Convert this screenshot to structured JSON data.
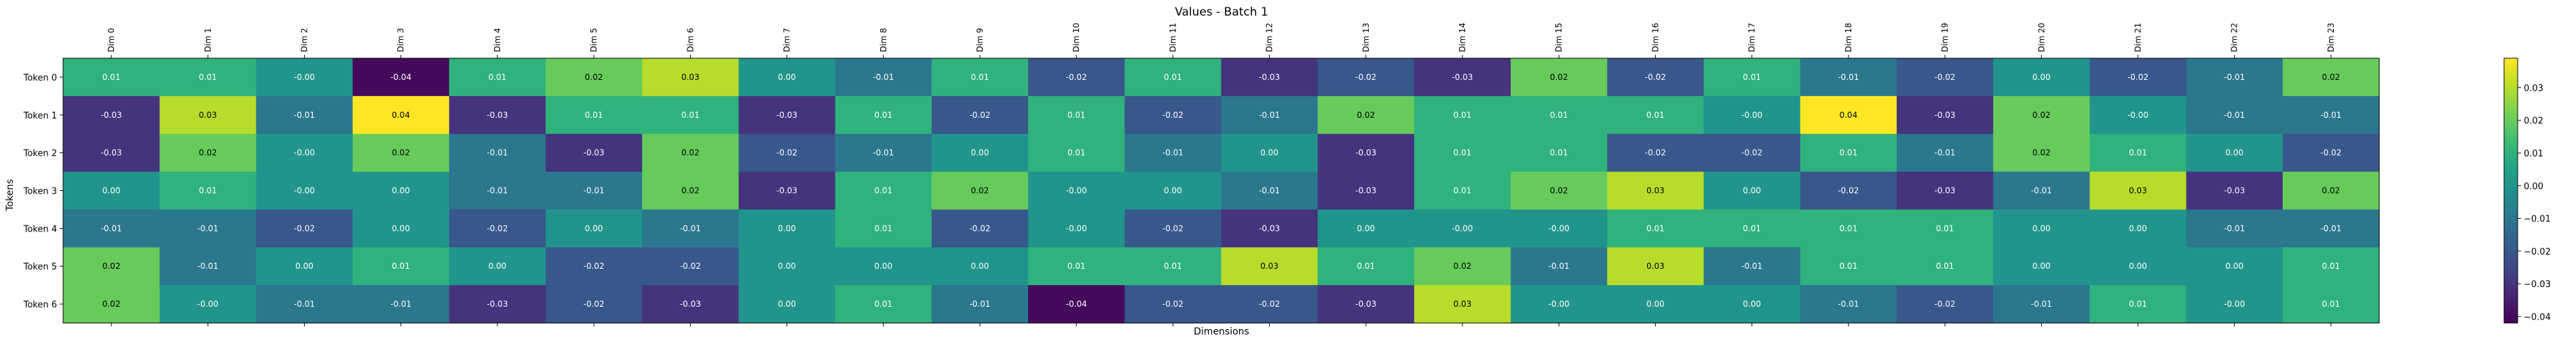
{
  "chart_data": {
    "type": "heatmap",
    "title": "Values - Batch 1",
    "xlabel": "Dimensions",
    "ylabel": "Tokens",
    "x_categories": [
      "Dim 0",
      "Dim 1",
      "Dim 2",
      "Dim 3",
      "Dim 4",
      "Dim 5",
      "Dim 6",
      "Dim 7",
      "Dim 8",
      "Dim 9",
      "Dim 10",
      "Dim 11",
      "Dim 12",
      "Dim 13",
      "Dim 14",
      "Dim 15",
      "Dim 16",
      "Dim 17",
      "Dim 18",
      "Dim 19",
      "Dim 20",
      "Dim 21",
      "Dim 22",
      "Dim 23"
    ],
    "y_categories": [
      "Token 0",
      "Token 1",
      "Token 2",
      "Token 3",
      "Token 4",
      "Token 5",
      "Token 6"
    ],
    "values": [
      [
        0.01,
        0.01,
        -0.0,
        -0.04,
        0.01,
        0.02,
        0.03,
        0.0,
        -0.01,
        0.01,
        -0.02,
        0.01,
        -0.03,
        -0.02,
        -0.03,
        0.02,
        -0.02,
        0.01,
        -0.01,
        -0.02,
        0.0,
        -0.02,
        -0.01,
        0.02
      ],
      [
        -0.03,
        0.03,
        -0.01,
        0.04,
        -0.03,
        0.01,
        0.01,
        -0.03,
        0.01,
        -0.02,
        0.01,
        -0.02,
        -0.01,
        0.02,
        0.01,
        0.01,
        0.01,
        -0.0,
        0.04,
        -0.03,
        0.02,
        -0.0,
        -0.01,
        -0.01
      ],
      [
        -0.03,
        0.02,
        -0.0,
        0.02,
        -0.01,
        -0.03,
        0.02,
        -0.02,
        -0.01,
        0.0,
        0.01,
        -0.01,
        0.0,
        -0.03,
        0.01,
        0.01,
        -0.02,
        -0.02,
        0.01,
        -0.01,
        0.02,
        0.01,
        0.0,
        -0.02
      ],
      [
        0.0,
        0.01,
        -0.0,
        0.0,
        -0.01,
        -0.01,
        0.02,
        -0.03,
        0.01,
        0.02,
        -0.0,
        0.0,
        -0.01,
        -0.03,
        0.01,
        0.02,
        0.03,
        0.0,
        -0.02,
        -0.03,
        -0.01,
        0.03,
        -0.03,
        0.02
      ],
      [
        -0.01,
        -0.01,
        -0.02,
        0.0,
        -0.02,
        0.0,
        -0.01,
        0.0,
        0.01,
        -0.02,
        -0.0,
        -0.02,
        -0.03,
        0.0,
        -0.0,
        -0.0,
        0.01,
        0.01,
        0.01,
        0.01,
        0.0,
        0.0,
        -0.01,
        -0.01
      ],
      [
        0.02,
        -0.01,
        0.0,
        0.01,
        0.0,
        -0.02,
        -0.02,
        0.0,
        0.0,
        0.0,
        0.01,
        0.01,
        0.03,
        0.01,
        0.02,
        -0.01,
        0.03,
        -0.01,
        0.01,
        0.01,
        0.0,
        0.0,
        0.0,
        0.01
      ],
      [
        0.02,
        -0.0,
        -0.01,
        -0.01,
        -0.03,
        -0.02,
        -0.03,
        0.0,
        0.01,
        -0.01,
        -0.04,
        -0.02,
        -0.02,
        -0.03,
        0.03,
        -0.0,
        0.0,
        0.0,
        -0.01,
        -0.02,
        -0.01,
        0.01,
        -0.0,
        0.01
      ]
    ],
    "value_labels": [
      [
        "0.01",
        "0.01",
        "-0.00",
        "-0.04",
        "0.01",
        "0.02",
        "0.03",
        "0.00",
        "-0.01",
        "0.01",
        "-0.02",
        "0.01",
        "-0.03",
        "-0.02",
        "-0.03",
        "0.02",
        "-0.02",
        "0.01",
        "-0.01",
        "-0.02",
        "0.00",
        "-0.02",
        "-0.01",
        "0.02"
      ],
      [
        "-0.03",
        "0.03",
        "-0.01",
        "0.04",
        "-0.03",
        "0.01",
        "0.01",
        "-0.03",
        "0.01",
        "-0.02",
        "0.01",
        "-0.02",
        "-0.01",
        "0.02",
        "0.01",
        "0.01",
        "0.01",
        "-0.00",
        "0.04",
        "-0.03",
        "0.02",
        "-0.00",
        "-0.01",
        "-0.01"
      ],
      [
        "-0.03",
        "0.02",
        "-0.00",
        "0.02",
        "-0.01",
        "-0.03",
        "0.02",
        "-0.02",
        "-0.01",
        "0.00",
        "0.01",
        "-0.01",
        "0.00",
        "-0.03",
        "0.01",
        "0.01",
        "-0.02",
        "-0.02",
        "0.01",
        "-0.01",
        "0.02",
        "0.01",
        "0.00",
        "-0.02"
      ],
      [
        "0.00",
        "0.01",
        "-0.00",
        "0.00",
        "-0.01",
        "-0.01",
        "0.02",
        "-0.03",
        "0.01",
        "0.02",
        "-0.00",
        "0.00",
        "-0.01",
        "-0.03",
        "0.01",
        "0.02",
        "0.03",
        "0.00",
        "-0.02",
        "-0.03",
        "-0.01",
        "0.03",
        "-0.03",
        "0.02"
      ],
      [
        "-0.01",
        "-0.01",
        "-0.02",
        "0.00",
        "-0.02",
        "0.00",
        "-0.01",
        "0.00",
        "0.01",
        "-0.02",
        "-0.00",
        "-0.02",
        "-0.03",
        "0.00",
        "-0.00",
        "-0.00",
        "0.01",
        "0.01",
        "0.01",
        "0.01",
        "0.00",
        "0.00",
        "-0.01",
        "-0.01"
      ],
      [
        "0.02",
        "-0.01",
        "0.00",
        "0.01",
        "0.00",
        "-0.02",
        "-0.02",
        "0.00",
        "0.00",
        "0.00",
        "0.01",
        "0.01",
        "0.03",
        "0.01",
        "0.02",
        "-0.01",
        "0.03",
        "-0.01",
        "0.01",
        "0.01",
        "0.00",
        "0.00",
        "0.00",
        "0.01"
      ],
      [
        "0.02",
        "-0.00",
        "-0.01",
        "-0.01",
        "-0.03",
        "-0.02",
        "-0.03",
        "0.00",
        "0.01",
        "-0.01",
        "-0.04",
        "-0.02",
        "-0.02",
        "-0.03",
        "0.03",
        "-0.00",
        "0.00",
        "0.00",
        "-0.01",
        "-0.02",
        "-0.01",
        "0.01",
        "-0.00",
        "0.01"
      ]
    ],
    "colormap": "viridis",
    "vmin": -0.042,
    "vmax": 0.039,
    "colorbar_ticks": [
      0.03,
      0.02,
      0.01,
      0.0,
      -0.01,
      -0.02,
      -0.03,
      -0.04
    ],
    "colorbar_tick_labels": [
      "0.03",
      "0.02",
      "0.01",
      "0.00",
      "−0.01",
      "−0.02",
      "−0.03",
      "−0.04"
    ],
    "grid": false,
    "x_tick_position": "top"
  }
}
